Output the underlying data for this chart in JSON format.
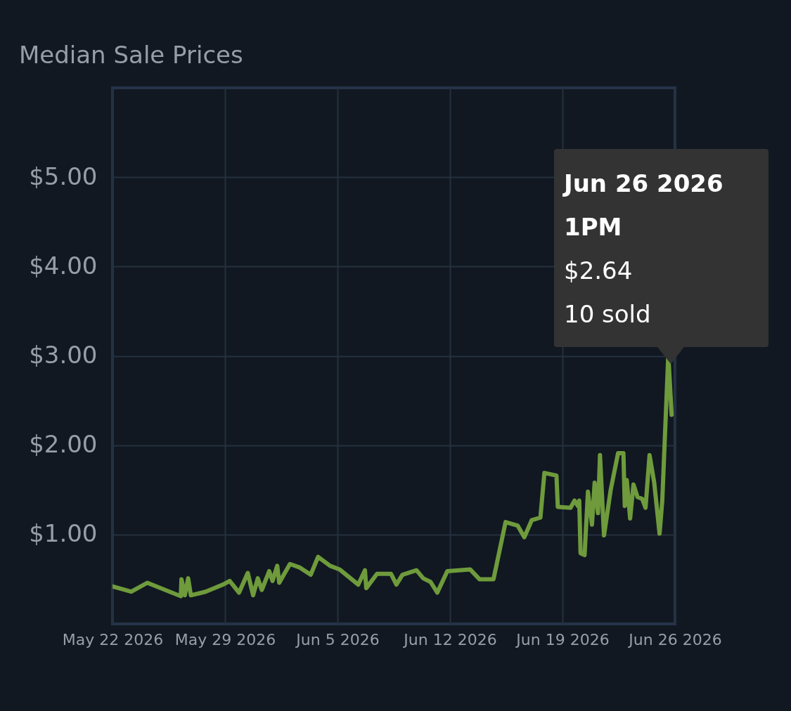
{
  "chart_data": {
    "type": "line",
    "title": "Median Sale Prices",
    "x": [
      "2026-05-22T00:00",
      "2026-05-23T04:00",
      "2026-05-24T04:00",
      "2026-05-26T06:00",
      "2026-05-26T07:00",
      "2026-05-26T12:00",
      "2026-05-26T17:00",
      "2026-05-26T21:00",
      "2026-05-27T19:00",
      "2026-05-28T21:00",
      "2026-05-29T07:00",
      "2026-05-29T21:00",
      "2026-05-30T10:00",
      "2026-05-30T18:00",
      "2026-05-31T01:00",
      "2026-05-31T07:00",
      "2026-05-31T18:00",
      "2026-05-31T23:00",
      "2026-06-01T06:00",
      "2026-06-01T09:00",
      "2026-06-02T01:00",
      "2026-06-02T16:00",
      "2026-06-03T08:00",
      "2026-06-03T19:00",
      "2026-06-04T13:00",
      "2026-06-05T03:00",
      "2026-06-06T07:00",
      "2026-06-06T17:00",
      "2026-06-06T19:00",
      "2026-06-07T11:00",
      "2026-06-08T08:00",
      "2026-06-08T16:00",
      "2026-06-09T01:00",
      "2026-06-09T22:00",
      "2026-06-10T08:00",
      "2026-06-10T19:00",
      "2026-06-11T05:00",
      "2026-06-11T20:00",
      "2026-06-13T06:00",
      "2026-06-13T20:00",
      "2026-06-14T17:00",
      "2026-06-15T11:00",
      "2026-06-16T05:00",
      "2026-06-16T15:00",
      "2026-06-17T02:00",
      "2026-06-17T15:00",
      "2026-06-17T21:00",
      "2026-06-18T15:00",
      "2026-06-18T17:00",
      "2026-06-19T12:00",
      "2026-06-19T18:00",
      "2026-06-19T23:00",
      "2026-06-20T01:00",
      "2026-06-20T03:00",
      "2026-06-20T09:00",
      "2026-06-20T14:00",
      "2026-06-20T20:00",
      "2026-06-21T00:00",
      "2026-06-21T05:00",
      "2026-06-21T08:00",
      "2026-06-21T14:00",
      "2026-06-22T00:00",
      "2026-06-22T11:00",
      "2026-06-22T19:00",
      "2026-06-22T21:00",
      "2026-06-23T00:00",
      "2026-06-23T05:00",
      "2026-06-23T10:00",
      "2026-06-23T16:00",
      "2026-06-23T23:00",
      "2026-06-24T04:00",
      "2026-06-24T10:00",
      "2026-06-24T17:00",
      "2026-06-25T01:00",
      "2026-06-25T05:00",
      "2026-06-25T14:00",
      "2026-06-25T19:00"
    ],
    "series": [
      {
        "color": "#6f9b3c",
        "values": [
          0.42,
          0.36,
          0.46,
          0.31,
          0.5,
          0.32,
          0.51,
          0.32,
          0.36,
          0.44,
          0.48,
          0.35,
          0.57,
          0.32,
          0.51,
          0.38,
          0.59,
          0.48,
          0.65,
          0.46,
          0.67,
          0.63,
          0.55,
          0.75,
          0.65,
          0.61,
          0.44,
          0.6,
          0.4,
          0.56,
          0.56,
          0.44,
          0.55,
          0.6,
          0.51,
          0.47,
          0.35,
          0.59,
          0.61,
          0.5,
          0.5,
          1.14,
          1.1,
          0.97,
          1.16,
          1.19,
          1.69,
          1.66,
          1.31,
          1.3,
          1.38,
          1.32,
          1.38,
          0.79,
          0.77,
          1.48,
          1.11,
          1.58,
          1.24,
          1.89,
          0.99,
          1.5,
          1.91,
          1.91,
          1.32,
          1.61,
          1.18,
          1.56,
          1.42,
          1.4,
          1.3,
          1.89,
          1.58,
          1.01,
          1.38,
          3.01,
          2.34
        ]
      }
    ],
    "xlim": [
      "2026-05-22",
      "2026-06-26"
    ],
    "xticks": [
      {
        "value": "2026-05-22",
        "label": "May 22 2026"
      },
      {
        "value": "2026-05-29",
        "label": "May 29 2026"
      },
      {
        "value": "2026-06-05",
        "label": "Jun 5 2026"
      },
      {
        "value": "2026-06-12",
        "label": "Jun 12 2026"
      },
      {
        "value": "2026-06-19",
        "label": "Jun 19 2026"
      },
      {
        "value": "2026-06-26",
        "label": "Jun 26 2026"
      }
    ],
    "ylim": [
      0,
      6
    ],
    "yticks": [
      {
        "value": 1,
        "label": "$1.00"
      },
      {
        "value": 2,
        "label": "$2.00"
      },
      {
        "value": 3,
        "label": "$3.00"
      },
      {
        "value": 4,
        "label": "$4.00"
      },
      {
        "value": 5,
        "label": "$5.00"
      }
    ],
    "grid": true,
    "annotations": [
      "Jun 26 2026",
      "1PM",
      "$2.64",
      "10 sold"
    ]
  }
}
